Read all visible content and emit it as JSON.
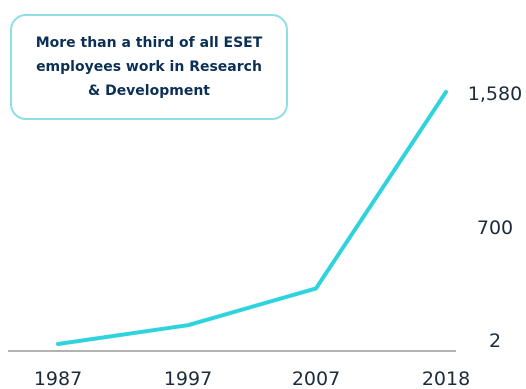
{
  "annotation": "More than a third of all ESET employees work in Research & Development",
  "colors": {
    "line": "#2ed3dd",
    "box_border": "#8ddfe3",
    "text_dark": "#0c2f56",
    "axis": "#666666"
  },
  "chart_data": {
    "type": "line",
    "title": "",
    "xlabel": "",
    "ylabel": "",
    "x": [
      "1987",
      "1997",
      "2007",
      "2018"
    ],
    "series": [
      {
        "values": [
          2,
          120,
          350,
          1580
        ]
      }
    ],
    "ytick_labels": [
      "2",
      "700",
      "1,580"
    ],
    "grid": false,
    "legend": "none"
  }
}
